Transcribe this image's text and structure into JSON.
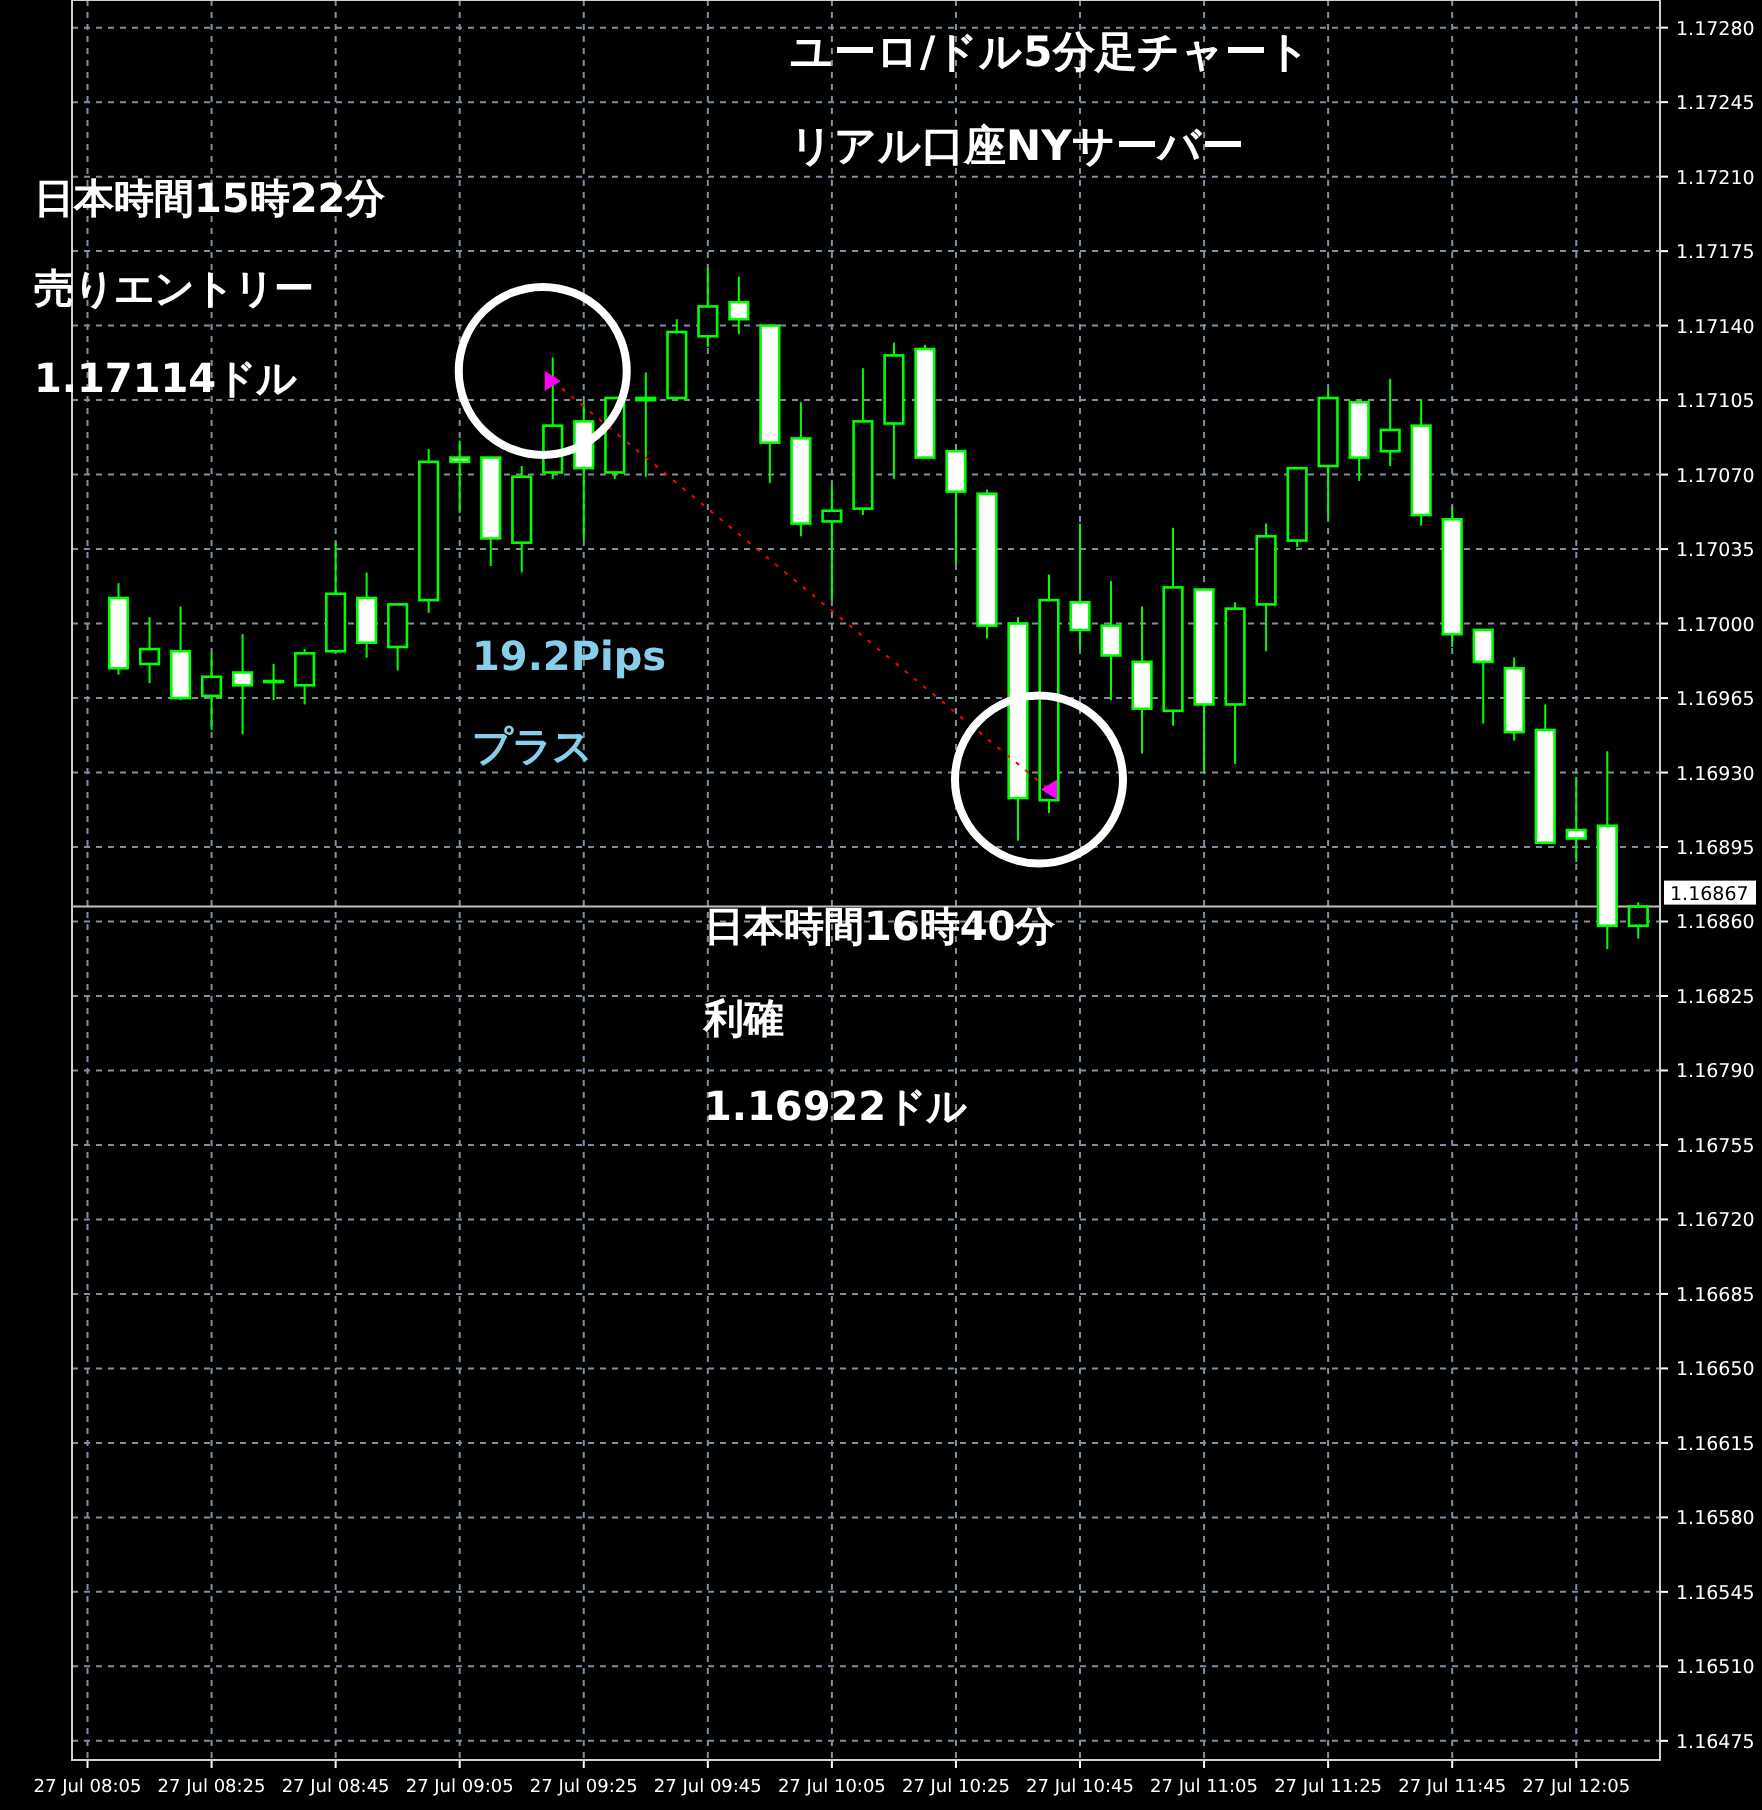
{
  "chart_data": {
    "type": "candlestick",
    "title": "ユーロ/ドル5分足チャート",
    "subtitle": "リアル口座NYサーバー",
    "annotations": [
      "日本時間15時22分",
      "売りエントリー",
      "1.17114ドル",
      "19.2Pips",
      "プラス",
      "日本時間16時40分",
      "利確",
      "1.16922ドル"
    ],
    "color": "#00ff00",
    "categories": [
      "27 Jul 08:05",
      null,
      null,
      null,
      "27 Jul 08:25",
      null,
      null,
      null,
      "27 Jul 08:45",
      null,
      null,
      null,
      "27 Jul 09:05",
      null,
      null,
      null,
      "27 Jul 09:25",
      null,
      null,
      null,
      "27 Jul 09:45",
      null,
      null,
      null,
      "27 Jul 10:05",
      null,
      null,
      null,
      "27 Jul 10:25",
      null,
      null,
      null,
      "27 Jul 10:45",
      null,
      null,
      null,
      "27 Jul 11:05",
      null,
      null,
      null,
      "27 Jul 11:25",
      null,
      null,
      null,
      "27 Jul 11:45",
      null,
      null,
      null,
      "27 Jul 12:05",
      null,
      null
    ],
    "ohlc": [
      null,
      [
        1.17012,
        1.17019,
        1.16976,
        1.16979
      ],
      [
        1.16981,
        1.17003,
        1.16972,
        1.16988
      ],
      [
        1.16987,
        1.17008,
        1.16964,
        1.16965
      ],
      [
        1.16966,
        1.16986,
        1.1695,
        1.16975
      ],
      [
        1.16977,
        1.16995,
        1.16948,
        1.16971
      ],
      [
        1.16973,
        1.16981,
        1.16964,
        1.16973
      ],
      [
        1.16971,
        1.16988,
        1.16962,
        1.16986
      ],
      [
        1.16987,
        1.17038,
        1.16987,
        1.17014
      ],
      [
        1.17012,
        1.17024,
        1.16984,
        1.16991
      ],
      [
        1.16989,
        1.17009,
        1.16978,
        1.17009
      ],
      [
        1.17011,
        1.17082,
        1.17005,
        1.17076
      ],
      [
        1.17078,
        1.17086,
        1.17052,
        1.17076
      ],
      [
        1.17078,
        1.17078,
        1.17027,
        1.1704
      ],
      [
        1.17038,
        1.17074,
        1.17024,
        1.17069
      ],
      [
        1.17071,
        1.17125,
        1.17068,
        1.17093
      ],
      [
        1.17095,
        1.17104,
        1.17039,
        1.17073
      ],
      [
        1.17071,
        1.17106,
        1.17068,
        1.17106
      ],
      [
        1.17106,
        1.17118,
        1.17069,
        1.17105
      ],
      [
        1.17106,
        1.17143,
        1.17106,
        1.17137
      ],
      [
        1.17135,
        1.17167,
        1.1713,
        1.17149
      ],
      [
        1.17151,
        1.17163,
        1.17136,
        1.17143
      ],
      [
        1.1714,
        1.1714,
        1.17066,
        1.17085
      ],
      [
        1.17087,
        1.17104,
        1.17041,
        1.17047
      ],
      [
        1.17048,
        1.17065,
        1.17011,
        1.17053
      ],
      [
        1.17054,
        1.1712,
        1.17051,
        1.17095
      ],
      [
        1.17094,
        1.17132,
        1.17068,
        1.17126
      ],
      [
        1.17129,
        1.17131,
        1.17078,
        1.17078
      ],
      [
        1.17081,
        1.17081,
        1.17028,
        1.17062
      ],
      [
        1.17061,
        1.17063,
        1.16993,
        1.16999
      ],
      [
        1.17,
        1.17003,
        1.16898,
        1.16918
      ],
      [
        1.16917,
        1.17023,
        1.16911,
        1.17011
      ],
      [
        1.1701,
        1.17047,
        1.16988,
        1.16997
      ],
      [
        1.16999,
        1.1702,
        1.16964,
        1.16985
      ],
      [
        1.16982,
        1.17008,
        1.16939,
        1.1696
      ],
      [
        1.16959,
        1.17045,
        1.16952,
        1.17017
      ],
      [
        1.17016,
        1.17016,
        1.1693,
        1.16962
      ],
      [
        1.16962,
        1.1701,
        1.16934,
        1.17007
      ],
      [
        1.17009,
        1.17047,
        1.16987,
        1.17041
      ],
      [
        1.17039,
        1.17073,
        1.17036,
        1.17073
      ],
      [
        1.17074,
        1.1711,
        1.17049,
        1.17106
      ],
      [
        1.17104,
        1.17104,
        1.17067,
        1.17078
      ],
      [
        1.17081,
        1.17115,
        1.17074,
        1.17091
      ],
      [
        1.17093,
        1.17105,
        1.17046,
        1.17051
      ],
      [
        1.17049,
        1.17055,
        1.16989,
        1.16995
      ],
      [
        1.16997,
        1.16997,
        1.16953,
        1.16982
      ],
      [
        1.16979,
        1.16984,
        1.16945,
        1.16949
      ],
      [
        1.1695,
        1.16962,
        1.16897,
        1.16897
      ],
      [
        1.16903,
        1.16928,
        1.16888,
        1.16899
      ],
      [
        1.16905,
        1.1694,
        1.16847,
        1.16858
      ],
      [
        1.16858,
        1.16869,
        1.16852,
        1.16867
      ]
    ],
    "series": [
      {
        "type": "line",
        "values": [
          null,
          null,
          null,
          null,
          null,
          null,
          null,
          null,
          null,
          null,
          null,
          null,
          null,
          null,
          null,
          1.17114,
          null,
          null,
          null,
          null,
          null,
          null,
          null,
          null,
          null,
          null,
          null,
          null,
          null,
          null,
          null,
          1.16922,
          null,
          null,
          null,
          null,
          null,
          null,
          null,
          null,
          null,
          null,
          null,
          null,
          null,
          null,
          null,
          null,
          null,
          null,
          null
        ],
        "color": "#ff0000",
        "line_style": "dotted",
        "marker": "none"
      },
      {
        "type": "scatter",
        "values": [
          null,
          null,
          null,
          null,
          null,
          null,
          null,
          null,
          null,
          null,
          null,
          null,
          null,
          null,
          null,
          1.17114,
          null,
          null,
          null,
          null,
          null,
          null,
          null,
          null,
          null,
          null,
          null,
          null,
          null,
          null,
          null,
          1.16922,
          null,
          null,
          null,
          null,
          null,
          null,
          null,
          null,
          null,
          null,
          null,
          null,
          null,
          null,
          null,
          null,
          null,
          null,
          null
        ],
        "color": "#ff00ff",
        "marker": "triangle"
      }
    ],
    "ref_lines": [
      {
        "axis": "y",
        "value": 1.16867,
        "label": "1.16867",
        "color": "#c0c0c0"
      }
    ],
    "ylim": [
      1.16466,
      1.17293
    ],
    "yticks": [
      {
        "value": 1.1728,
        "label": "1.17280"
      },
      {
        "value": 1.17245,
        "label": "1.17245"
      },
      {
        "value": 1.1721,
        "label": "1.17210"
      },
      {
        "value": 1.17175,
        "label": "1.17175"
      },
      {
        "value": 1.1714,
        "label": "1.17140"
      },
      {
        "value": 1.17105,
        "label": "1.17105"
      },
      {
        "value": 1.1707,
        "label": "1.17070"
      },
      {
        "value": 1.17035,
        "label": "1.17035"
      },
      {
        "value": 1.17,
        "label": "1.17000"
      },
      {
        "value": 1.16965,
        "label": "1.16965"
      },
      {
        "value": 1.1693,
        "label": "1.16930"
      },
      {
        "value": 1.16895,
        "label": "1.16895"
      },
      {
        "value": 1.1686,
        "label": "1.16860"
      },
      {
        "value": 1.16825,
        "label": "1.16825"
      },
      {
        "value": 1.1679,
        "label": "1.16790"
      },
      {
        "value": 1.16755,
        "label": "1.16755"
      },
      {
        "value": 1.1672,
        "label": "1.16720"
      },
      {
        "value": 1.16685,
        "label": "1.16685"
      },
      {
        "value": 1.1665,
        "label": "1.16650"
      },
      {
        "value": 1.16615,
        "label": "1.16615"
      },
      {
        "value": 1.1658,
        "label": "1.16580"
      },
      {
        "value": 1.16545,
        "label": "1.16545"
      },
      {
        "value": 1.1651,
        "label": "1.16510"
      },
      {
        "value": 1.16475,
        "label": "1.16475"
      }
    ],
    "grid": true
  }
}
